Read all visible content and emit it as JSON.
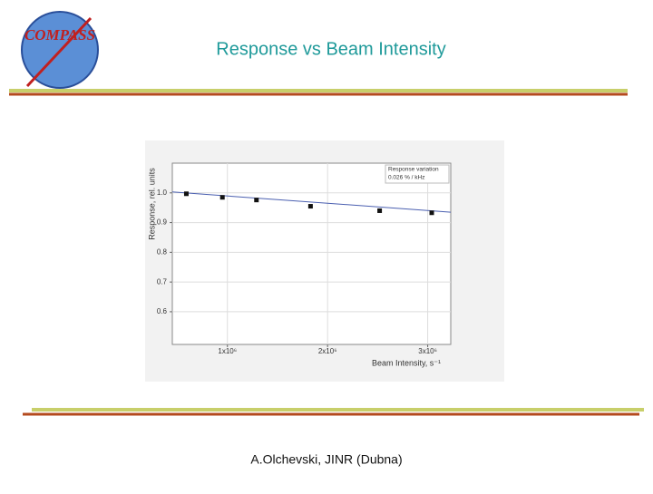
{
  "slide": {
    "logo": "COMPASS",
    "title": "Response vs Beam Intensity",
    "footer": "A.Olchevski, JINR (Dubna)"
  },
  "chart_data": {
    "type": "scatter",
    "xlabel": "Beam Intensity, s⁻¹",
    "ylabel": "Response, rel. units",
    "annotations": [
      "Response variation",
      "0.026 % / kHz"
    ],
    "xlim": [
      450000,
      3230000
    ],
    "xticks": [
      {
        "value": 1000000,
        "label": "1x10⁶"
      },
      {
        "value": 2000000,
        "label": "2x10⁶"
      },
      {
        "value": 3000000,
        "label": "3x10⁶"
      }
    ],
    "ylim": [
      0.49,
      1.1
    ],
    "yticks": [
      {
        "value": 1,
        "label": "1.0"
      },
      0.9,
      0.8,
      0.7,
      0.6
    ],
    "grid": true,
    "series": [
      {
        "color": "#111111",
        "marker": "square",
        "x": [
          590000,
          950000,
          1290000,
          1830000,
          2520000,
          3040000
        ],
        "values": [
          0.997,
          0.985,
          0.976,
          0.955,
          0.94,
          0.933
        ]
      },
      {
        "color": "#4a5fb0",
        "x": [
          450000,
          3230000
        ],
        "values": [
          1.003,
          0.935
        ]
      }
    ]
  }
}
